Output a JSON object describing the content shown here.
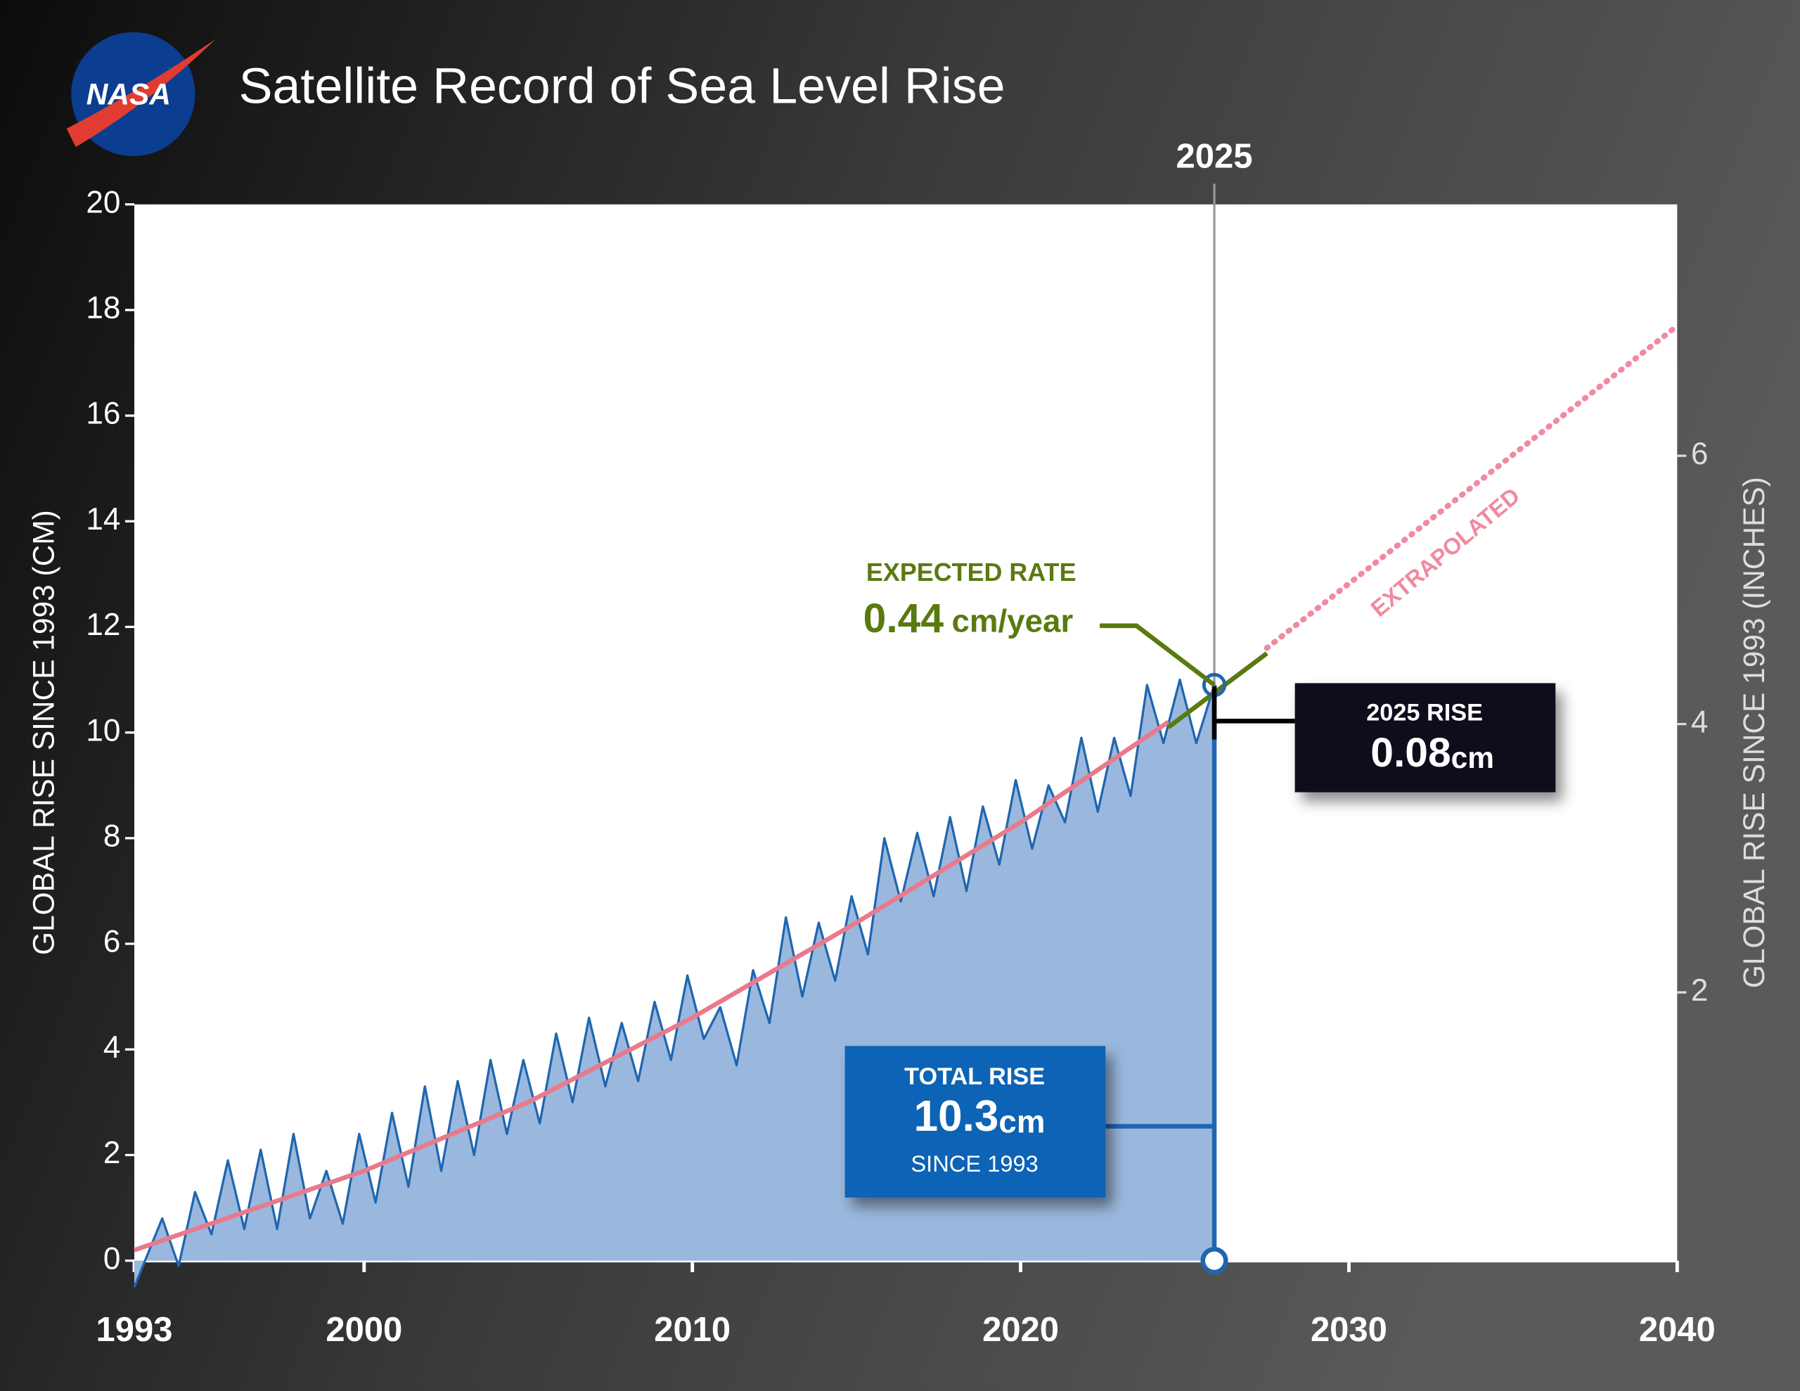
{
  "chart_data": {
    "type": "line",
    "title": "Satellite Record of Sea Level Rise",
    "logo": "NASA",
    "y_label": "GLOBAL RISE SINCE 1993 (CM)",
    "y2_label": "GLOBAL RISE SINCE 1993 (INCHES)",
    "xlim": [
      1993,
      2040
    ],
    "xticks": [
      1993,
      2000,
      2010,
      2020,
      2030,
      2040
    ],
    "ylim": [
      0,
      20
    ],
    "yticks": [
      0,
      2,
      4,
      6,
      8,
      10,
      12,
      14,
      16,
      18,
      20
    ],
    "y2lim": [
      0,
      7.874
    ],
    "y2ticks": [
      2,
      4,
      6
    ],
    "series": [
      {
        "color": "#1f66b0",
        "fill": "#9ab8dd",
        "x": [
          1993.0,
          1993.85,
          1994.35,
          1994.85,
          1995.35,
          1995.85,
          1996.35,
          1996.85,
          1997.35,
          1997.85,
          1998.35,
          1998.85,
          1999.35,
          1999.85,
          2000.35,
          2000.85,
          2001.35,
          2001.85,
          2002.35,
          2002.85,
          2003.35,
          2003.85,
          2004.35,
          2004.85,
          2005.35,
          2005.85,
          2006.35,
          2006.85,
          2007.35,
          2007.85,
          2008.35,
          2008.85,
          2009.35,
          2009.85,
          2010.35,
          2010.85,
          2011.35,
          2011.85,
          2012.35,
          2012.85,
          2013.35,
          2013.85,
          2014.35,
          2014.85,
          2015.35,
          2015.85,
          2016.35,
          2016.85,
          2017.35,
          2017.85,
          2018.35,
          2018.85,
          2019.35,
          2019.85,
          2020.35,
          2020.85,
          2021.35,
          2021.85,
          2022.35,
          2022.85,
          2023.35,
          2023.85,
          2024.35,
          2024.85,
          2025.35,
          2025.9
        ],
        "values": [
          -0.5,
          0.8,
          -0.1,
          1.3,
          0.5,
          1.9,
          0.6,
          2.1,
          0.6,
          2.4,
          0.8,
          1.7,
          0.7,
          2.4,
          1.1,
          2.8,
          1.4,
          3.3,
          1.7,
          3.4,
          2.0,
          3.8,
          2.4,
          3.8,
          2.6,
          4.3,
          3.0,
          4.6,
          3.3,
          4.5,
          3.4,
          4.9,
          3.8,
          5.4,
          4.2,
          4.8,
          3.7,
          5.5,
          4.5,
          6.5,
          5.0,
          6.4,
          5.3,
          6.9,
          5.8,
          8.0,
          6.8,
          8.1,
          6.9,
          8.4,
          7.0,
          8.6,
          7.5,
          9.1,
          7.8,
          9.0,
          8.3,
          9.9,
          8.5,
          9.9,
          8.8,
          10.9,
          9.8,
          11.0,
          9.8,
          10.9
        ]
      },
      {
        "color": "#e87a8c",
        "x": [
          1993,
          2000,
          2005,
          2010,
          2015,
          2020,
          2024.5
        ],
        "values": [
          0.2,
          1.7,
          3.0,
          4.6,
          6.4,
          8.3,
          10.2
        ]
      },
      {
        "color": "#f08aa0",
        "dashed": true,
        "x": [
          2027.5,
          2040
        ],
        "values": [
          11.6,
          17.7
        ]
      },
      {
        "color": "#5a7a10",
        "x": [
          2024.5,
          2027.5
        ],
        "values": [
          10.1,
          11.5
        ]
      }
    ],
    "marker": {
      "x": {
        "value": 2025.9,
        "label": "2025"
      },
      "top": 10.9
    },
    "expected_rate": {
      "label": "EXPECTED RATE",
      "value": 0.44,
      "unit": "cm/year"
    },
    "rise_2025": {
      "label": "2025 RISE",
      "value": 0.08,
      "unit": "cm"
    },
    "total_rise": {
      "label": "TOTAL RISE",
      "value": 10.3,
      "unit": "cm",
      "note": "SINCE 1993"
    },
    "extrapolated_label": "EXTRAPOLATED"
  }
}
